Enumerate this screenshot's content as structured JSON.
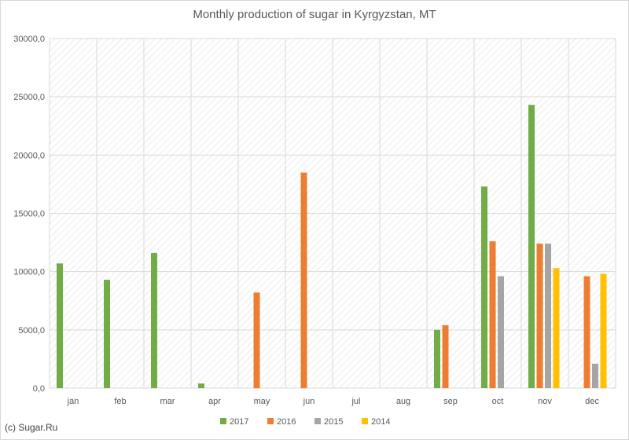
{
  "chart_data": {
    "type": "bar",
    "title": "Monthly production of sugar in Kyrgyzstan, MT",
    "xlabel": "",
    "ylabel": "",
    "ylim": [
      0,
      30000
    ],
    "yticks": [
      "0,0",
      "5000,0",
      "10000,0",
      "15000,0",
      "20000,0",
      "25000,0",
      "30000,0"
    ],
    "ytick_values": [
      0,
      5000,
      10000,
      15000,
      20000,
      25000,
      30000
    ],
    "grid": true,
    "legend_position": "bottom",
    "categories": [
      "jan",
      "feb",
      "mar",
      "apr",
      "may",
      "jun",
      "jul",
      "aug",
      "sep",
      "oct",
      "nov",
      "dec"
    ],
    "series": [
      {
        "name": "2017",
        "color": "#70ad47",
        "values": [
          10700,
          9300,
          11600,
          400,
          0,
          0,
          0,
          0,
          5000,
          17300,
          24300,
          0
        ]
      },
      {
        "name": "2016",
        "color": "#ed7d31",
        "values": [
          0,
          0,
          0,
          0,
          8200,
          18500,
          0,
          0,
          5400,
          12600,
          12400,
          9600
        ]
      },
      {
        "name": "2015",
        "color": "#a5a5a5",
        "values": [
          0,
          0,
          0,
          0,
          0,
          0,
          0,
          0,
          0,
          9600,
          12400,
          2100
        ]
      },
      {
        "name": "2014",
        "color": "#ffc000",
        "values": [
          0,
          0,
          0,
          0,
          0,
          0,
          0,
          0,
          0,
          0,
          10300,
          9800
        ]
      }
    ]
  },
  "credit": "(c) Sugar.Ru"
}
